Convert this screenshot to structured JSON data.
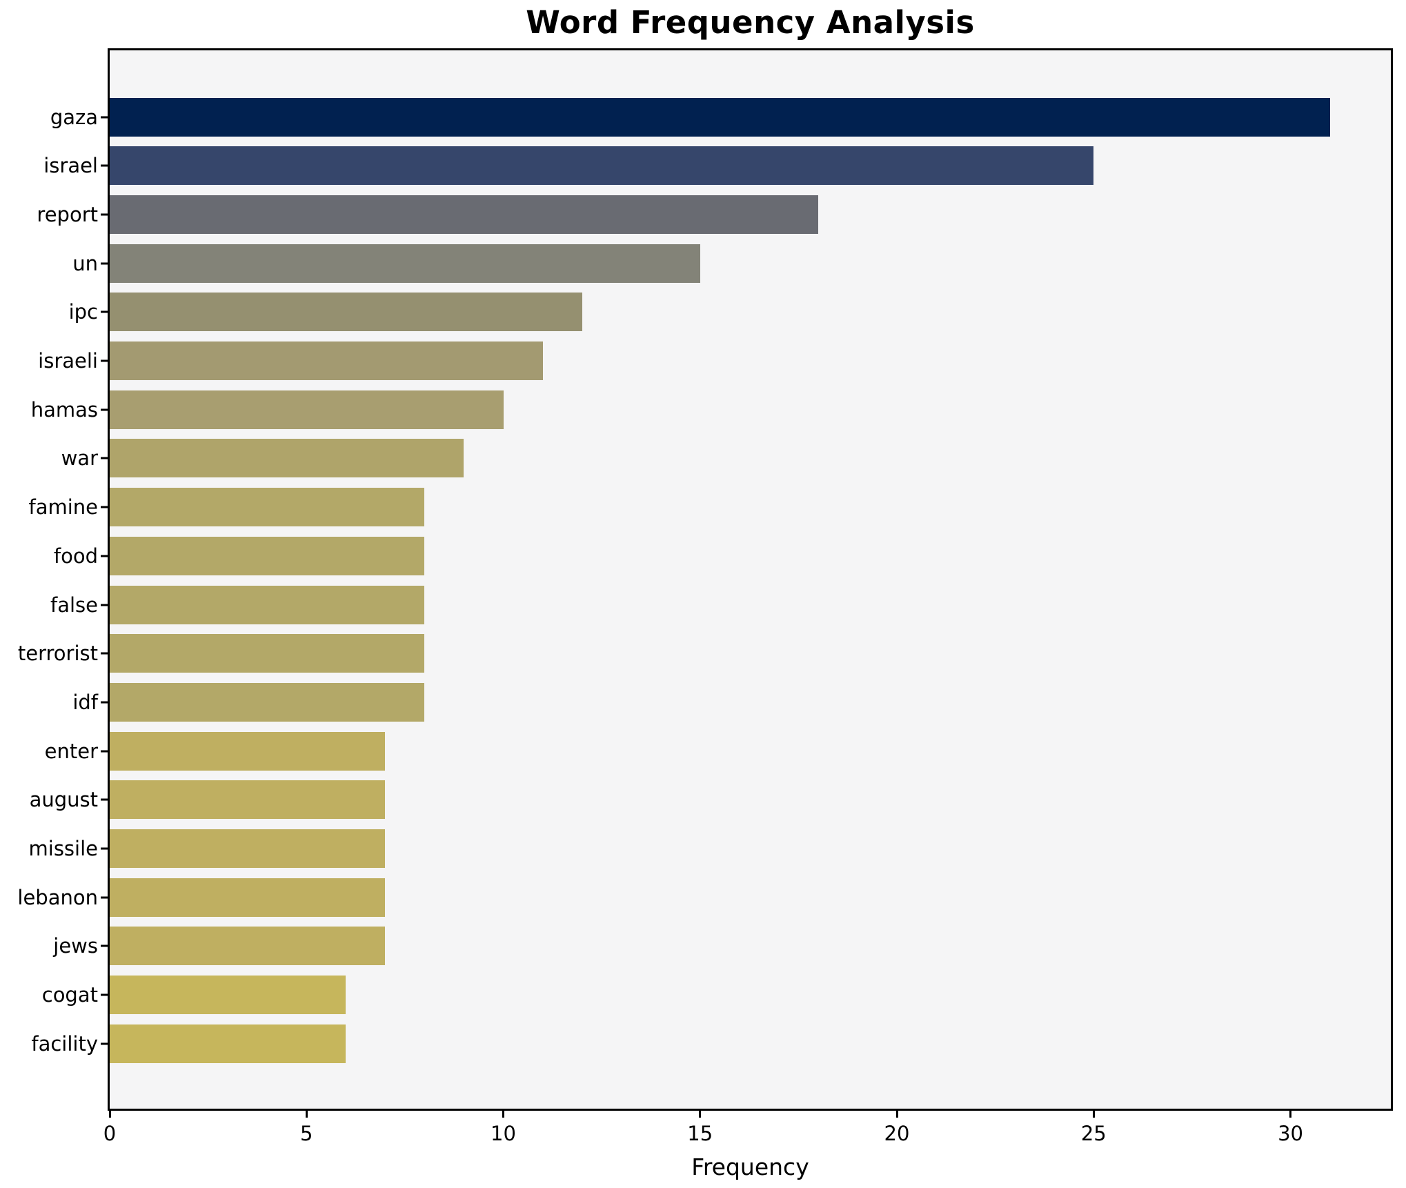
{
  "chart_data": {
    "type": "bar",
    "orientation": "horizontal",
    "title": "Word Frequency Analysis",
    "xlabel": "Frequency",
    "ylabel": "",
    "categories": [
      "gaza",
      "israel",
      "report",
      "un",
      "ipc",
      "israeli",
      "hamas",
      "war",
      "famine",
      "food",
      "false",
      "terrorist",
      "idf",
      "enter",
      "august",
      "missile",
      "lebanon",
      "jews",
      "cogat",
      "facility"
    ],
    "values": [
      31,
      25,
      18,
      15,
      12,
      11,
      10,
      9,
      8,
      8,
      8,
      8,
      8,
      7,
      7,
      7,
      7,
      7,
      6,
      6
    ],
    "bar_colors": [
      "#012150",
      "#36466b",
      "#696b72",
      "#838378",
      "#959070",
      "#a39a71",
      "#a89e70",
      "#afa46a",
      "#b3a868",
      "#b3a868",
      "#b3a868",
      "#b3a868",
      "#b3a868",
      "#bfaf61",
      "#bfaf61",
      "#bfaf61",
      "#bfaf61",
      "#bfaf61",
      "#c6b65c",
      "#c6b65c"
    ],
    "xticks": [
      0,
      5,
      10,
      15,
      20,
      25,
      30
    ],
    "xlim": [
      0,
      32.55
    ],
    "grid": false,
    "legend": null,
    "plot_bg": "#f5f5f6",
    "figure_bg": "#ffffff",
    "spine_color": "#000000",
    "text_color": "#000000"
  }
}
